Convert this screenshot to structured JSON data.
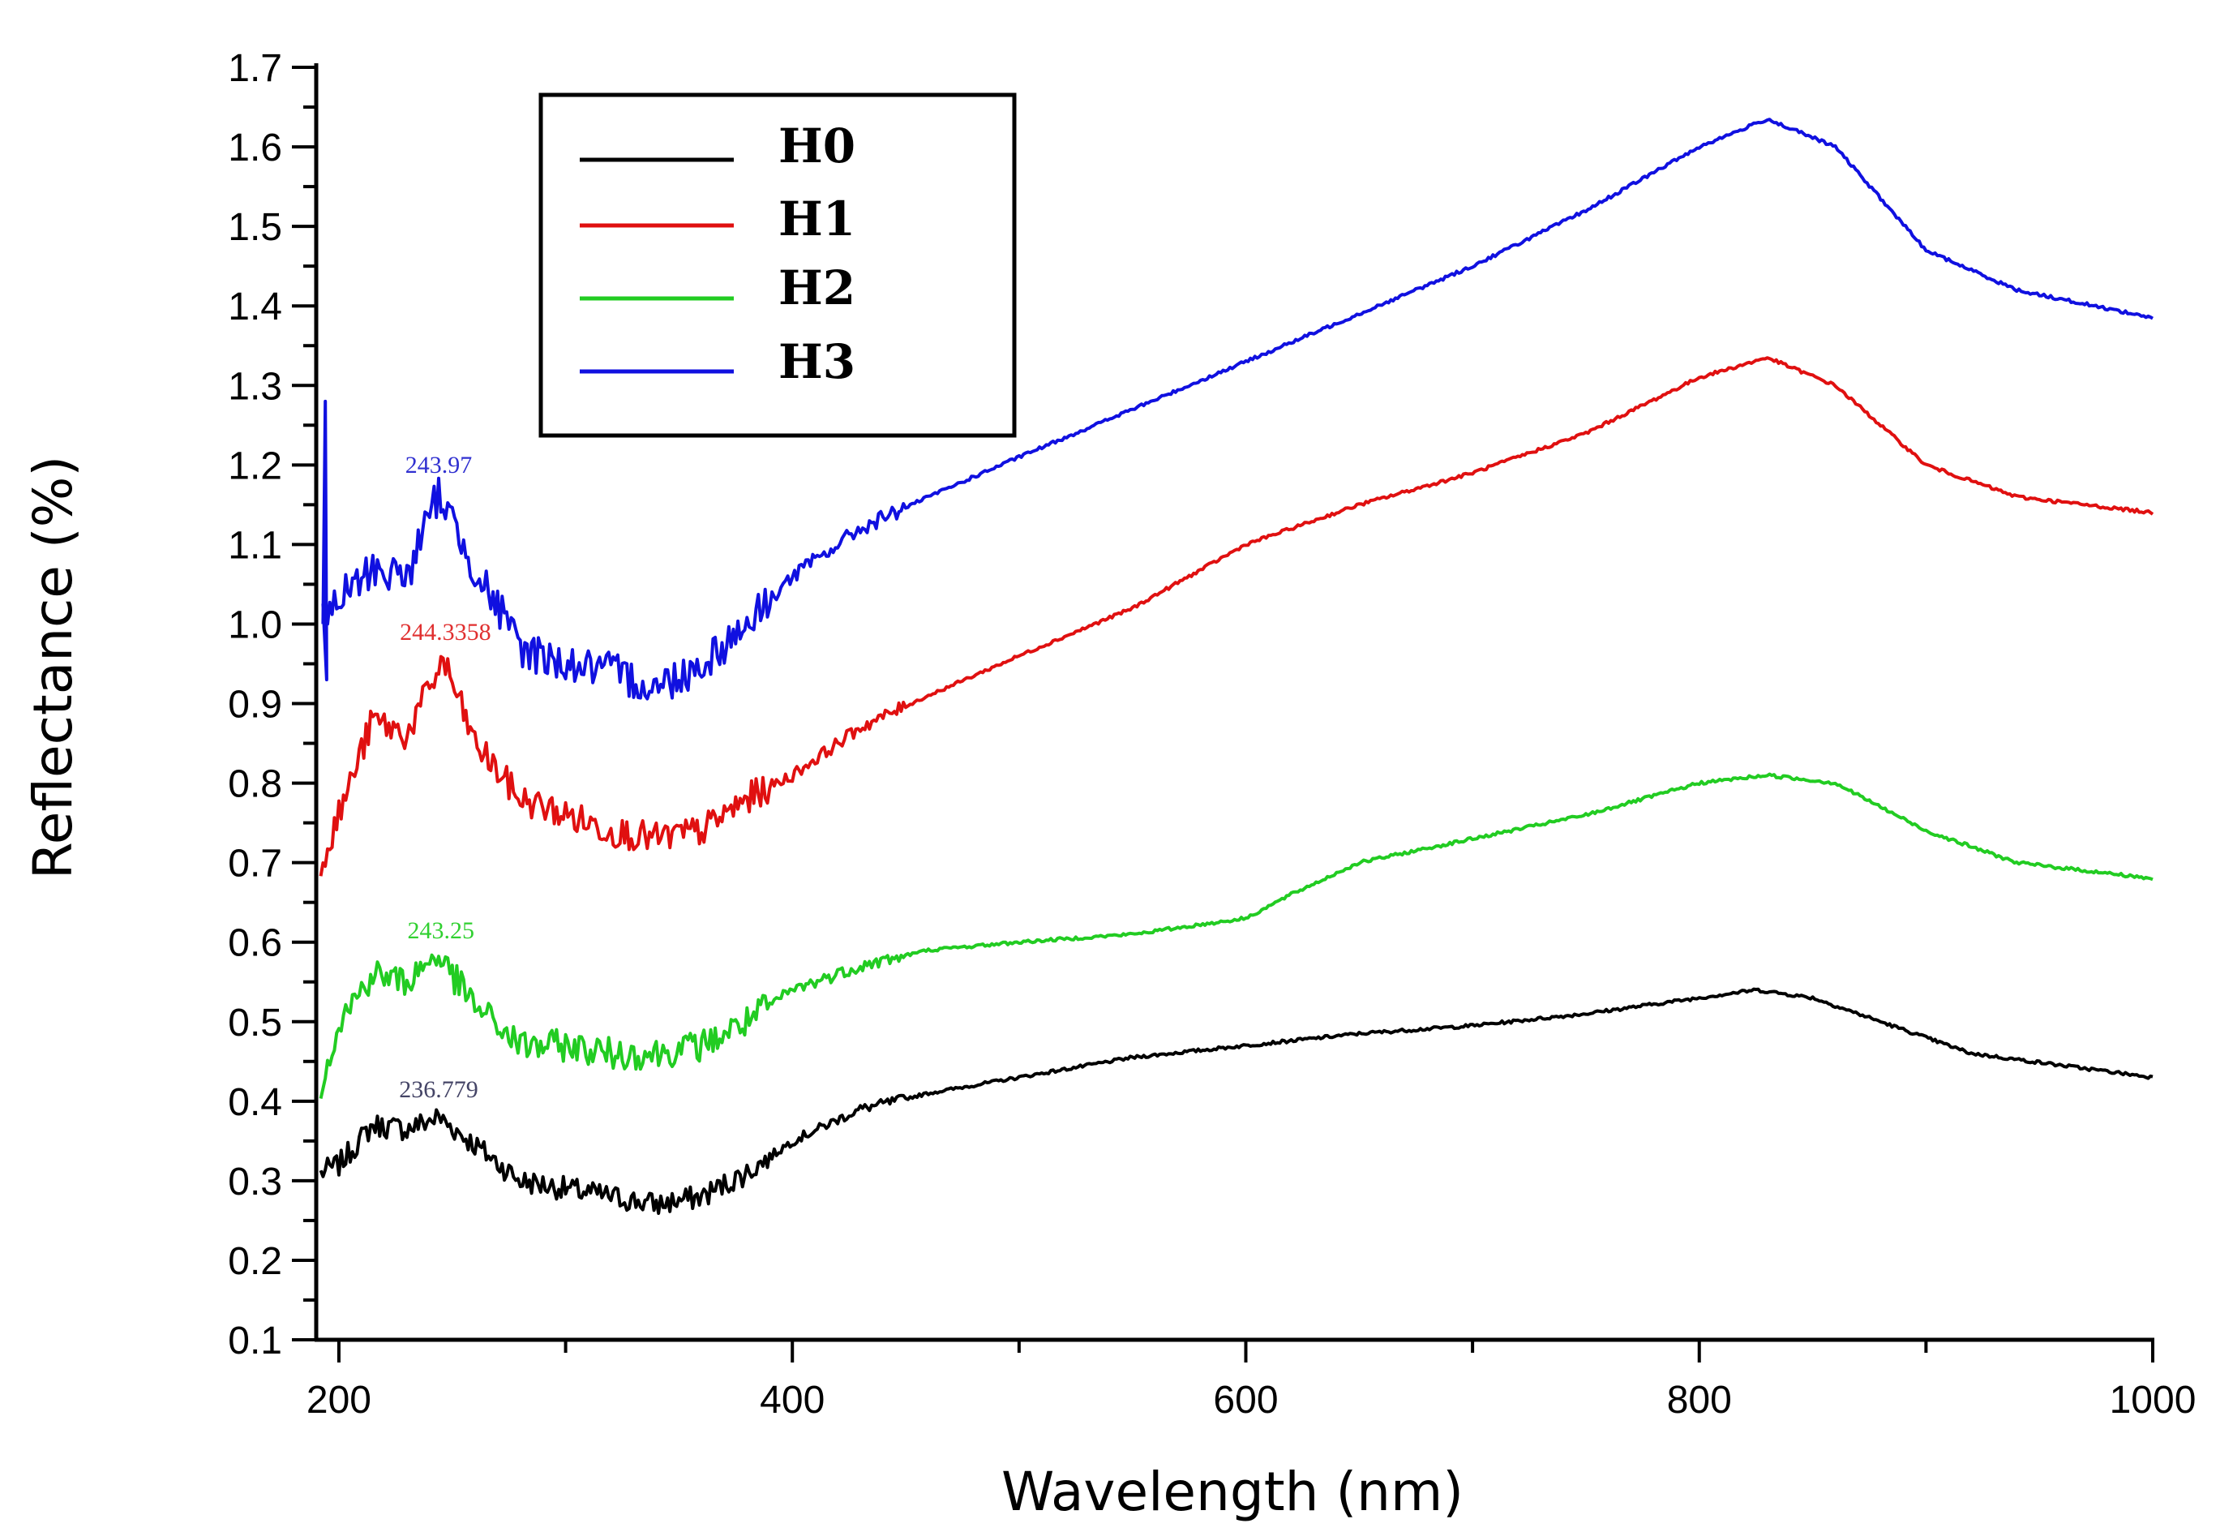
{
  "chart_data": {
    "type": "line",
    "title": "",
    "xlabel": "Wavelength (nm)",
    "ylabel": "Reflectance (%)",
    "xlim": [
      190,
      1000
    ],
    "ylim": [
      0.1,
      1.7
    ],
    "xticks": [
      200,
      400,
      600,
      800,
      1000
    ],
    "yticks": [
      0.1,
      0.2,
      0.3,
      0.4,
      0.5,
      0.6,
      0.7,
      0.8,
      0.9,
      1.0,
      1.1,
      1.2,
      1.3,
      1.4,
      1.5,
      1.6,
      1.7
    ],
    "legend_position": "top-left",
    "series": [
      {
        "name": "H0",
        "color": "#000000",
        "x": [
          192,
          200,
          215,
          230,
          244,
          260,
          280,
          300,
          320,
          340,
          360,
          380,
          400,
          430,
          460,
          500,
          550,
          600,
          650,
          700,
          750,
          800,
          825,
          850,
          880,
          920,
          960,
          1000
        ],
        "y": [
          0.31,
          0.32,
          0.37,
          0.365,
          0.38,
          0.345,
          0.3,
          0.29,
          0.28,
          0.27,
          0.28,
          0.31,
          0.35,
          0.39,
          0.41,
          0.43,
          0.455,
          0.47,
          0.485,
          0.495,
          0.51,
          0.53,
          0.54,
          0.53,
          0.5,
          0.46,
          0.445,
          0.43
        ],
        "noise": 0.015
      },
      {
        "name": "H1",
        "color": "#e01010",
        "x": [
          192,
          200,
          215,
          230,
          246,
          260,
          280,
          300,
          320,
          340,
          360,
          380,
          400,
          430,
          460,
          500,
          550,
          600,
          650,
          700,
          750,
          800,
          830,
          860,
          900,
          940,
          1000
        ],
        "y": [
          0.7,
          0.76,
          0.88,
          0.86,
          0.955,
          0.85,
          0.78,
          0.76,
          0.74,
          0.73,
          0.74,
          0.78,
          0.81,
          0.87,
          0.91,
          0.96,
          1.02,
          1.1,
          1.15,
          1.19,
          1.24,
          1.31,
          1.335,
          1.3,
          1.2,
          1.16,
          1.14
        ],
        "noise": 0.02
      },
      {
        "name": "H2",
        "color": "#22cc22",
        "x": [
          192,
          200,
          215,
          230,
          243,
          260,
          280,
          300,
          320,
          340,
          360,
          380,
          400,
          430,
          460,
          500,
          550,
          600,
          620,
          650,
          700,
          750,
          800,
          830,
          860,
          900,
          940,
          1000
        ],
        "y": [
          0.42,
          0.5,
          0.56,
          0.55,
          0.585,
          0.52,
          0.47,
          0.47,
          0.46,
          0.46,
          0.47,
          0.5,
          0.54,
          0.57,
          0.59,
          0.6,
          0.61,
          0.63,
          0.66,
          0.7,
          0.73,
          0.76,
          0.8,
          0.81,
          0.8,
          0.74,
          0.7,
          0.68
        ],
        "noise": 0.02
      },
      {
        "name": "H3",
        "color": "#1010e0",
        "x": [
          193,
          200,
          215,
          230,
          244,
          260,
          280,
          300,
          320,
          340,
          360,
          380,
          400,
          430,
          460,
          500,
          550,
          600,
          650,
          700,
          750,
          800,
          830,
          860,
          900,
          940,
          1000
        ],
        "y": [
          1.0,
          1.03,
          1.07,
          1.06,
          1.165,
          1.07,
          0.97,
          0.95,
          0.94,
          0.92,
          0.95,
          1.0,
          1.06,
          1.12,
          1.16,
          1.21,
          1.27,
          1.33,
          1.39,
          1.45,
          1.52,
          1.6,
          1.635,
          1.6,
          1.47,
          1.42,
          1.385
        ],
        "noise": 0.025,
        "spike": {
          "x": 194,
          "y": 1.28
        }
      }
    ],
    "annotations": [
      {
        "text": "243.97",
        "x": 244,
        "y": 1.19,
        "color": "#3030d0"
      },
      {
        "text": "244.3358",
        "x": 247,
        "y": 0.98,
        "color": "#e03030"
      },
      {
        "text": "243.25",
        "x": 245,
        "y": 0.605,
        "color": "#30d030"
      },
      {
        "text": "236.779",
        "x": 244,
        "y": 0.405,
        "color": "#444466"
      }
    ]
  }
}
